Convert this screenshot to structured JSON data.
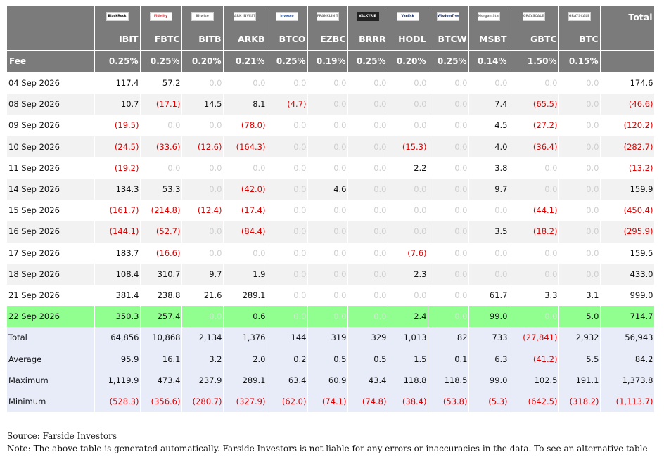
{
  "brand_logos": [
    "BlackRock",
    "Fidelity",
    "Bitwise",
    "ARK INVEST",
    "Invesco",
    "FRANKLIN TEMPLETON",
    "VALKYRIE",
    "VanEck",
    "WisdomTree",
    "Morgan Stanley",
    "GRAYSCALE",
    "GRAYSCALE"
  ],
  "total_label": "Total",
  "tickers": [
    "IBIT",
    "FBTC",
    "BITB",
    "ARKB",
    "BTCO",
    "EZBC",
    "BRRR",
    "HODL",
    "BTCW",
    "MSBT",
    "GBTC",
    "BTC"
  ],
  "fee_label": "Fee",
  "fees": [
    "0.25%",
    "0.25%",
    "0.20%",
    "0.21%",
    "0.25%",
    "0.19%",
    "0.25%",
    "0.20%",
    "0.25%",
    "0.14%",
    "1.50%",
    "0.15%"
  ],
  "rows": [
    {
      "date": "04 Sep 2026",
      "values": [
        "117.4",
        "57.2",
        "0.0",
        "0.0",
        "0.0",
        "0.0",
        "0.0",
        "0.0",
        "0.0",
        "0.0",
        "0.0",
        "0.0"
      ],
      "total": "174.6"
    },
    {
      "date": "08 Sep 2026",
      "values": [
        "10.7",
        "(17.1)",
        "14.5",
        "8.1",
        "(4.7)",
        "0.0",
        "0.0",
        "0.0",
        "0.0",
        "7.4",
        "(65.5)",
        "0.0"
      ],
      "total": "(46.6)"
    },
    {
      "date": "09 Sep 2026",
      "values": [
        "(19.5)",
        "0.0",
        "0.0",
        "(78.0)",
        "0.0",
        "0.0",
        "0.0",
        "0.0",
        "0.0",
        "4.5",
        "(27.2)",
        "0.0"
      ],
      "total": "(120.2)"
    },
    {
      "date": "10 Sep 2026",
      "values": [
        "(24.5)",
        "(33.6)",
        "(12.6)",
        "(164.3)",
        "0.0",
        "0.0",
        "0.0",
        "(15.3)",
        "0.0",
        "4.0",
        "(36.4)",
        "0.0"
      ],
      "total": "(282.7)"
    },
    {
      "date": "11 Sep 2026",
      "values": [
        "(19.2)",
        "0.0",
        "0.0",
        "0.0",
        "0.0",
        "0.0",
        "0.0",
        "2.2",
        "0.0",
        "3.8",
        "0.0",
        "0.0"
      ],
      "total": "(13.2)"
    },
    {
      "date": "14 Sep 2026",
      "values": [
        "134.3",
        "53.3",
        "0.0",
        "(42.0)",
        "0.0",
        "4.6",
        "0.0",
        "0.0",
        "0.0",
        "9.7",
        "0.0",
        "0.0"
      ],
      "total": "159.9"
    },
    {
      "date": "15 Sep 2026",
      "values": [
        "(161.7)",
        "(214.8)",
        "(12.4)",
        "(17.4)",
        "0.0",
        "0.0",
        "0.0",
        "0.0",
        "0.0",
        "0.0",
        "(44.1)",
        "0.0"
      ],
      "total": "(450.4)"
    },
    {
      "date": "16 Sep 2026",
      "values": [
        "(144.1)",
        "(52.7)",
        "0.0",
        "(84.4)",
        "0.0",
        "0.0",
        "0.0",
        "0.0",
        "0.0",
        "3.5",
        "(18.2)",
        "0.0"
      ],
      "total": "(295.9)"
    },
    {
      "date": "17 Sep 2026",
      "values": [
        "183.7",
        "(16.6)",
        "0.0",
        "0.0",
        "0.0",
        "0.0",
        "0.0",
        "(7.6)",
        "0.0",
        "0.0",
        "0.0",
        "0.0"
      ],
      "total": "159.5"
    },
    {
      "date": "18 Sep 2026",
      "values": [
        "108.4",
        "310.7",
        "9.7",
        "1.9",
        "0.0",
        "0.0",
        "0.0",
        "2.3",
        "0.0",
        "0.0",
        "0.0",
        "0.0"
      ],
      "total": "433.0"
    },
    {
      "date": "21 Sep 2026",
      "values": [
        "381.4",
        "238.8",
        "21.6",
        "289.1",
        "0.0",
        "0.0",
        "0.0",
        "0.0",
        "0.0",
        "61.7",
        "3.3",
        "3.1"
      ],
      "total": "999.0"
    },
    {
      "date": "22 Sep 2026",
      "values": [
        "350.3",
        "257.4",
        "0.0",
        "0.6",
        "0.0",
        "0.0",
        "0.0",
        "2.4",
        "0.0",
        "99.0",
        "0.0",
        "5.0"
      ],
      "total": "714.7",
      "highlight": true
    }
  ],
  "stats": [
    {
      "label": "Total",
      "values": [
        "64,856",
        "10,868",
        "2,134",
        "1,376",
        "144",
        "319",
        "329",
        "1,013",
        "82",
        "733",
        "(27,841)",
        "2,932"
      ],
      "total": "56,943"
    },
    {
      "label": "Average",
      "values": [
        "95.9",
        "16.1",
        "3.2",
        "2.0",
        "0.2",
        "0.5",
        "0.5",
        "1.5",
        "0.1",
        "6.3",
        "(41.2)",
        "5.5"
      ],
      "total": "84.2"
    },
    {
      "label": "Maximum",
      "values": [
        "1,119.9",
        "473.4",
        "237.9",
        "289.1",
        "63.4",
        "60.9",
        "43.4",
        "118.8",
        "118.5",
        "99.0",
        "102.5",
        "191.1"
      ],
      "total": "1,373.8"
    },
    {
      "label": "Minimum",
      "values": [
        "(528.3)",
        "(356.6)",
        "(280.7)",
        "(327.9)",
        "(62.0)",
        "(74.1)",
        "(74.8)",
        "(38.4)",
        "(53.8)",
        "(5.3)",
        "(642.5)",
        "(318.2)"
      ],
      "total": "(1,113.7)"
    }
  ],
  "footer": {
    "source": "Source: Farside Investors",
    "note": "Note: The above table is generated automatically. Farside Investors is not liable for any errors or inaccuracies in the data. To see an alternative table"
  },
  "colors": {
    "header_bg": "#7b7b7b",
    "highlight_row": "#90ff90",
    "stat_rows": "#e8ecf8",
    "negative": "#e00000",
    "zero": "#cfcfcf"
  }
}
